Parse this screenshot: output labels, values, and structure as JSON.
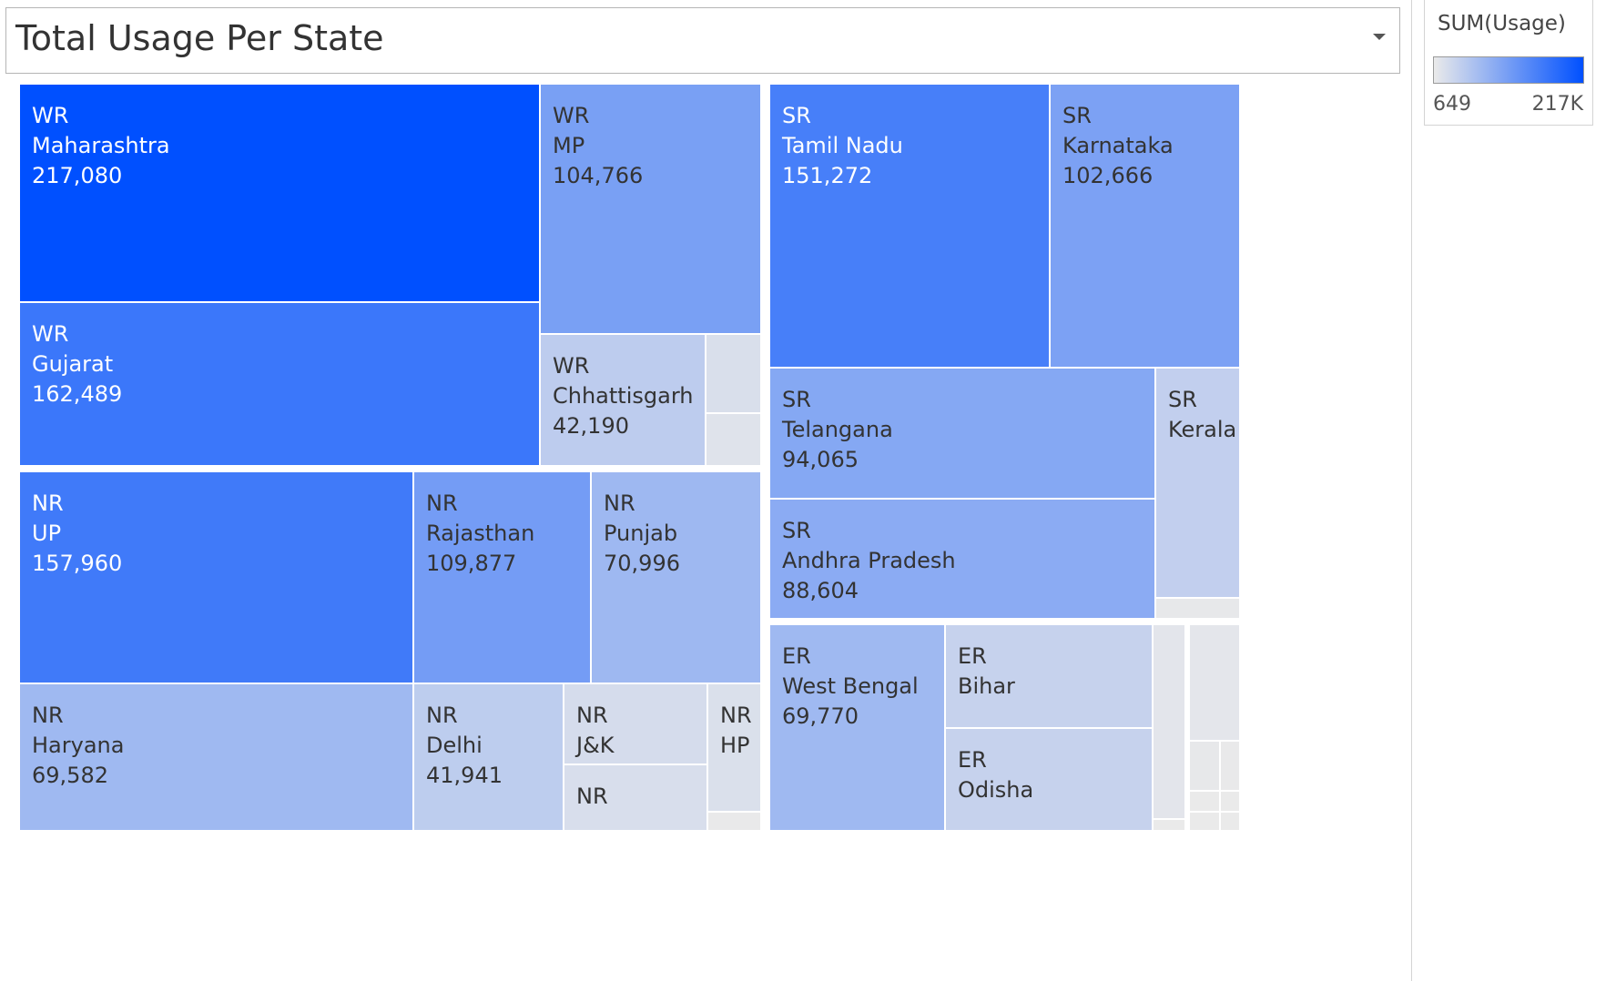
{
  "title": "Total Usage Per State",
  "legend": {
    "title": "SUM(Usage)",
    "min_label": "649",
    "max_label": "217K",
    "min_value": 649,
    "max_value": 217080,
    "color_low": "#eaeaea",
    "color_high": "#0050ff"
  },
  "chart_data": {
    "type": "treemap",
    "title": "Total Usage Per State",
    "measure": "SUM(Usage)",
    "color_range": [
      649,
      217080
    ],
    "regions": [
      {
        "name": "WR",
        "states": [
          {
            "state": "Maharashtra",
            "value": 217080,
            "show_label": true,
            "show_value": true
          },
          {
            "state": "Gujarat",
            "value": 162489,
            "show_label": true,
            "show_value": true
          },
          {
            "state": "MP",
            "value": 104766,
            "show_label": true,
            "show_value": true
          },
          {
            "state": "Chhattisgarh",
            "value": 42190,
            "show_label": true,
            "show_value": true
          },
          {
            "state": "",
            "value": 16000,
            "show_label": false,
            "show_value": false
          },
          {
            "state": "",
            "value": 11000,
            "show_label": false,
            "show_value": false
          }
        ]
      },
      {
        "name": "SR",
        "states": [
          {
            "state": "Tamil Nadu",
            "value": 151272,
            "show_label": true,
            "show_value": true
          },
          {
            "state": "Karnataka",
            "value": 102666,
            "show_label": true,
            "show_value": true
          },
          {
            "state": "Telangana",
            "value": 94065,
            "show_label": true,
            "show_value": true
          },
          {
            "state": "Andhra Pradesh",
            "value": 88604,
            "show_label": true,
            "show_value": true
          },
          {
            "state": "Kerala",
            "value": 38000,
            "show_label": true,
            "show_value": false
          },
          {
            "state": "",
            "value": 3000,
            "show_label": false,
            "show_value": false
          }
        ]
      },
      {
        "name": "NR",
        "states": [
          {
            "state": "UP",
            "value": 157960,
            "show_label": true,
            "show_value": true
          },
          {
            "state": "Rajasthan",
            "value": 109877,
            "show_label": true,
            "show_value": true
          },
          {
            "state": "Punjab",
            "value": 70996,
            "show_label": true,
            "show_value": true
          },
          {
            "state": "Haryana",
            "value": 69582,
            "show_label": true,
            "show_value": true
          },
          {
            "state": "Delhi",
            "value": 41941,
            "show_label": true,
            "show_value": true
          },
          {
            "state": "J&K",
            "value": 20000,
            "show_label": true,
            "show_value": false
          },
          {
            "state": "",
            "value": 17000,
            "show_label": true,
            "show_value": false
          },
          {
            "state": "HP",
            "value": 15000,
            "show_label": true,
            "show_value": false
          },
          {
            "state": "",
            "value": 2000,
            "show_label": false,
            "show_value": false
          }
        ]
      },
      {
        "name": "ER",
        "states": [
          {
            "state": "West Bengal",
            "value": 69770,
            "show_label": true,
            "show_value": true
          },
          {
            "state": "Bihar",
            "value": 34000,
            "show_label": true,
            "show_value": false
          },
          {
            "state": "Odisha",
            "value": 34000,
            "show_label": true,
            "show_value": false
          },
          {
            "state": "",
            "value": 7000,
            "show_label": false,
            "show_value": false
          },
          {
            "state": "",
            "value": 6000,
            "show_label": false,
            "show_value": false
          },
          {
            "state": "",
            "value": 3000,
            "show_label": false,
            "show_value": false
          },
          {
            "state": "",
            "value": 1500,
            "show_label": false,
            "show_value": false
          },
          {
            "state": "",
            "value": 1000,
            "show_label": false,
            "show_value": false
          },
          {
            "state": "",
            "value": 900,
            "show_label": false,
            "show_value": false
          },
          {
            "state": "",
            "value": 800,
            "show_label": false,
            "show_value": false
          },
          {
            "state": "",
            "value": 700,
            "show_label": false,
            "show_value": false
          },
          {
            "state": "",
            "value": 649,
            "show_label": false,
            "show_value": false
          }
        ]
      }
    ]
  }
}
